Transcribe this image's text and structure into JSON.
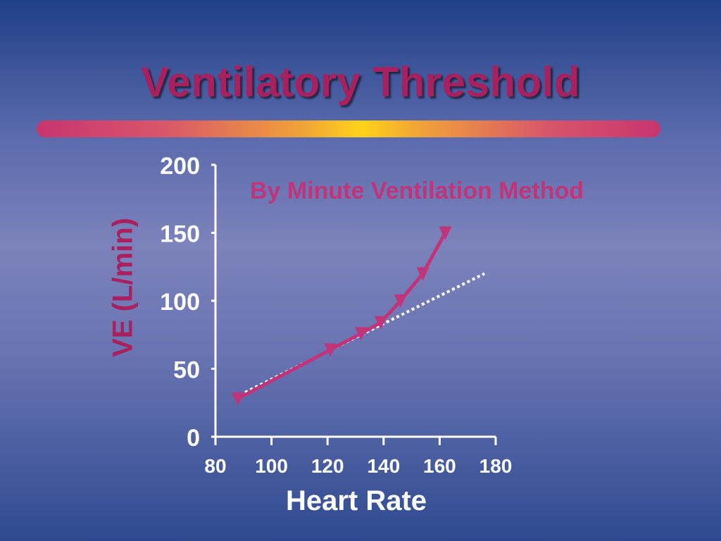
{
  "slide": {
    "title": "Ventilatory Threshold"
  },
  "chart_data": {
    "type": "line",
    "subtitle": "By Minute Ventilation Method",
    "xlabel": "Heart Rate",
    "ylabel": "VE (L/min)",
    "xlim": [
      80,
      180
    ],
    "ylim": [
      0,
      200
    ],
    "xticks": [
      80,
      100,
      120,
      140,
      160,
      180
    ],
    "yticks": [
      0,
      50,
      100,
      150,
      200
    ],
    "series": [
      {
        "color": "#c2347a",
        "marker": "triangle-down",
        "x": [
          88,
          121,
          132,
          139,
          146,
          154,
          162
        ],
        "y": [
          28,
          64,
          76,
          84,
          100,
          120,
          150
        ]
      }
    ],
    "trendline": {
      "color": "#ffffff",
      "style": "dotted",
      "x": [
        87,
        176
      ],
      "y": [
        29,
        120
      ]
    },
    "colors": {
      "title": "#a8205e",
      "subtitle": "#c2347a",
      "axis": "#ffffff"
    }
  }
}
